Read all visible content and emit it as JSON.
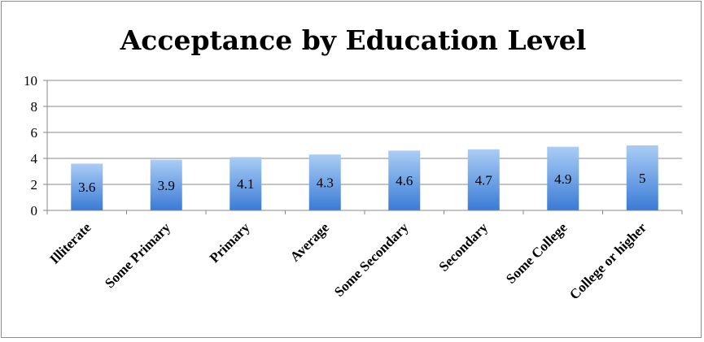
{
  "chart_data": {
    "type": "bar",
    "title": "Acceptance by Education Level",
    "categories": [
      "Illiterate",
      "Some Primary",
      "Primary",
      "Average",
      "Some Secondary",
      "Secondary",
      "Some College",
      "College or higher"
    ],
    "values": [
      3.6,
      3.9,
      4.1,
      4.3,
      4.6,
      4.7,
      4.9,
      5
    ],
    "data_labels": [
      "3.6",
      "3.9",
      "4.1",
      "4.3",
      "4.6",
      "4.7",
      "4.9",
      "5"
    ],
    "ylim": [
      0,
      10
    ],
    "yticks": [
      "0",
      "2",
      "4",
      "6",
      "8",
      "10"
    ],
    "xlabel": "",
    "ylabel": "",
    "grid": true,
    "legend": "none",
    "colors": {
      "bar_top": "#aacdf5",
      "bar_bottom": "#3a7bd5",
      "grid": "#888888",
      "axis": "#888888"
    }
  }
}
